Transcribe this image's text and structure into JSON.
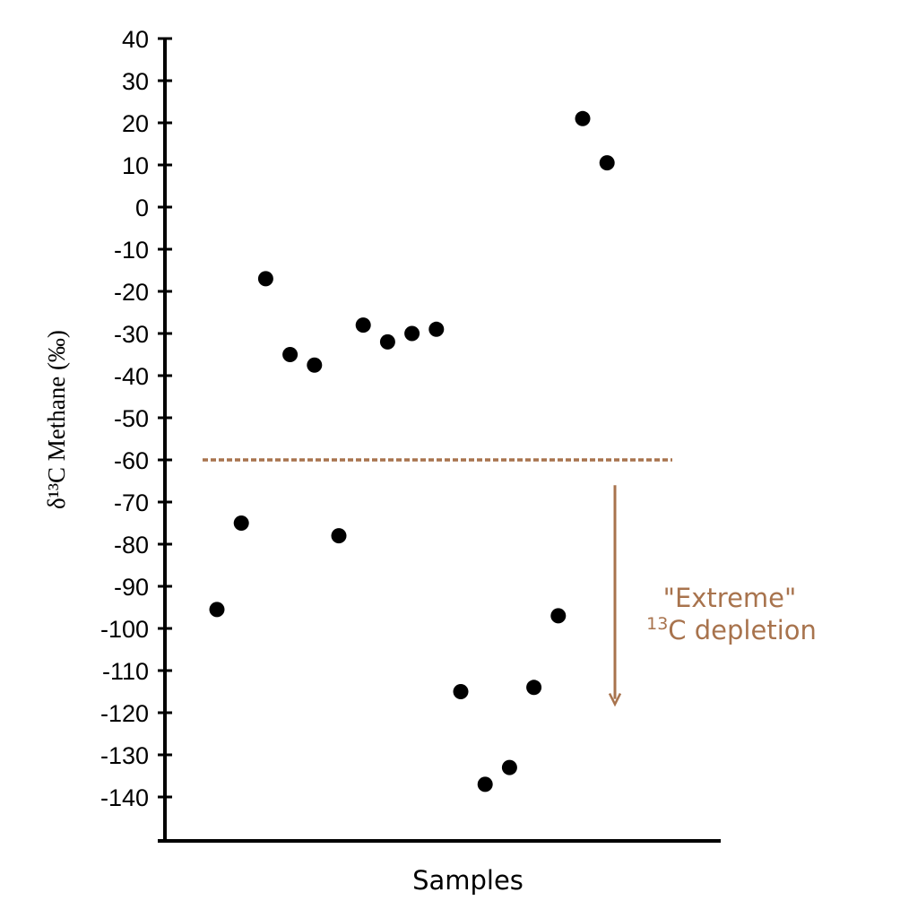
{
  "chart_data": {
    "type": "scatter",
    "xlabel": "Samples",
    "ylabel": "δ¹³C Methane (‰)",
    "ylim": [
      -150,
      40
    ],
    "ytick_labels": [
      "40",
      "30",
      "20",
      "10",
      "0",
      "-10",
      "-20",
      "-30",
      "-40",
      "-50",
      "-60",
      "-70",
      "-80",
      "-90",
      "-100",
      "-110",
      "-120",
      "-130",
      "-140"
    ],
    "grid": false,
    "series": [
      {
        "x": [
          1,
          2,
          3,
          4,
          5,
          6,
          7,
          8,
          9,
          10,
          11,
          12,
          13,
          14,
          15,
          16,
          17,
          18
        ],
        "y": [
          -95.5,
          -75,
          -17,
          -35,
          -37.5,
          -78,
          -28,
          -32,
          -30,
          -29,
          -115,
          -137,
          -133,
          -114,
          -97,
          21,
          10.5,
          null
        ]
      }
    ],
    "threshold": {
      "y": -60,
      "style": "dashed"
    },
    "annotation": {
      "line1": "\"Extreme\"",
      "line2_sup": "13",
      "line2_rest": "C depletion",
      "arrow_from_y": -66,
      "arrow_to_y": -118
    },
    "colors": {
      "points": "#000000",
      "axis": "#000000",
      "accent": "#a8734d"
    }
  }
}
